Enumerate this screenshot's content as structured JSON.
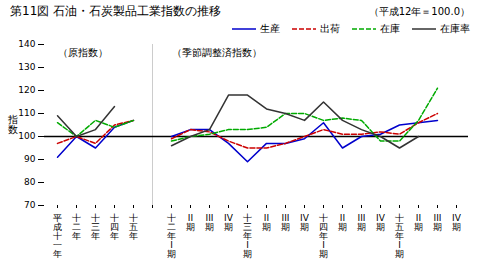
{
  "chart_data": {
    "type": "line",
    "title": "第11図  石油・石炭製品工業指数の推移",
    "subtitle": "（平成12年＝100.0）",
    "y_label": "指\n数",
    "annotations": [
      "（原指数）",
      "（季節調整済指数）"
    ],
    "reference_line": 100,
    "categories": [
      "平\n成\n十\n一\n年",
      "十\n二\n年",
      "十\n三\n年",
      "十\n四\n年",
      "十\n五\n年",
      null,
      "十\n二\n年\nI\n期",
      "II\n期",
      "III\n期",
      "IV\n期",
      "十\n三\n年\nI\n期",
      "II\n期",
      "III\n期",
      "IV\n期",
      "十\n四\n年\nI\n期",
      "II\n期",
      "III\n期",
      "IV\n期",
      "十\n五\n年\nI\n期",
      "II\n期",
      "III\n期",
      "IV\n期"
    ],
    "series": [
      {
        "name": "生産",
        "color": "#0000cc",
        "line_style": "solid",
        "values": [
          91,
          100,
          95,
          104,
          107,
          null,
          100,
          103,
          103,
          97,
          89,
          97,
          97,
          99,
          106,
          95,
          100,
          101,
          105,
          106,
          107,
          null
        ]
      },
      {
        "name": "出荷",
        "color": "#cc0000",
        "line_style": "dashed",
        "values": [
          97,
          100,
          97,
          105,
          107,
          null,
          99,
          103,
          102,
          98,
          95,
          95,
          97,
          100,
          103,
          101,
          101,
          102,
          101,
          106,
          110,
          null
        ]
      },
      {
        "name": "在庫",
        "color": "#00aa00",
        "line_style": "dashed",
        "values": [
          106,
          100,
          107,
          104,
          107,
          null,
          98,
          100,
          101,
          103,
          103,
          104,
          110,
          110,
          107,
          108,
          107,
          98,
          98,
          107,
          121,
          null
        ]
      },
      {
        "name": "在庫率",
        "color": "#333333",
        "line_style": "solid",
        "values": [
          109,
          100,
          103,
          113,
          null,
          null,
          96,
          100,
          103,
          118,
          118,
          112,
          110,
          107,
          115,
          107,
          103,
          100,
          95,
          100,
          null,
          null
        ]
      }
    ],
    "ylim": [
      70,
      140
    ],
    "yticks": [
      70,
      80,
      90,
      100,
      110,
      120,
      130,
      140
    ],
    "grid": false,
    "legend": "top"
  }
}
